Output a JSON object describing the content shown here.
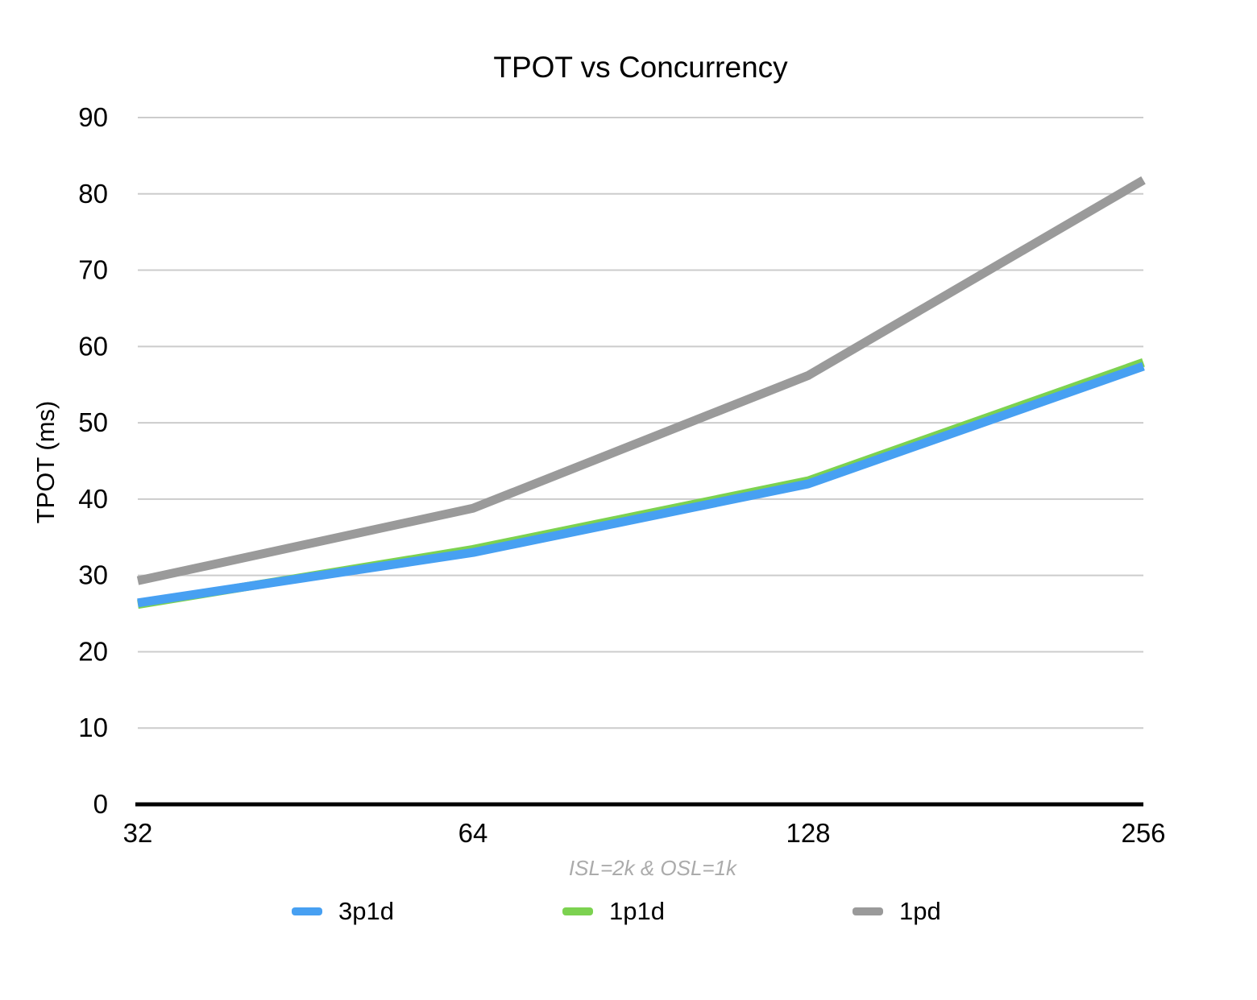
{
  "chart_data": {
    "type": "line",
    "title": "TPOT vs Concurrency",
    "xlabel": "ISL=2k & OSL=1k",
    "ylabel": "TPOT (ms)",
    "categories": [
      "32",
      "64",
      "128",
      "256"
    ],
    "y_ticks": [
      0,
      10,
      20,
      30,
      40,
      50,
      60,
      70,
      80,
      90
    ],
    "ylim": [
      0,
      90
    ],
    "grid": "horizontal",
    "legend_position": "bottom",
    "series": [
      {
        "name": "3p1d",
        "color": "#47A0F2",
        "values": [
          26.4,
          33.0,
          42.0,
          57.4
        ]
      },
      {
        "name": "1p1d",
        "color": "#7CD250",
        "values": [
          26.2,
          33.4,
          42.4,
          57.9
        ]
      },
      {
        "name": "1pd",
        "color": "#9A9A9A",
        "values": [
          29.3,
          38.8,
          56.2,
          81.8
        ]
      }
    ],
    "draw_order": [
      "1p1d",
      "3p1d",
      "1pd"
    ]
  },
  "styles": {
    "grid_color": "#CCCCCC",
    "axis_color": "#000000",
    "tick_label_color": "#000000",
    "sublabel_color": "#ABABAB",
    "series_line_width": 11,
    "grid_line_width": 2,
    "axis_line_width": 5
  }
}
